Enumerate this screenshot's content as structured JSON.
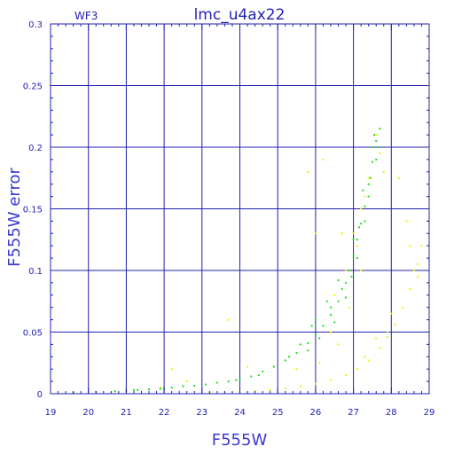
{
  "chart_data": {
    "type": "scatter",
    "title": "lmc_u4ax22",
    "tag": "WF3",
    "xlabel": "F555W",
    "ylabel": "F555W error",
    "xlim": [
      19,
      29
    ],
    "ylim": [
      0,
      0.3
    ],
    "x_ticks": [
      "19",
      "20",
      "21",
      "22",
      "23",
      "24",
      "25",
      "26",
      "27",
      "28",
      "29"
    ],
    "y_ticks": [
      "0",
      "0.05",
      "0.1",
      "0.15",
      "0.2",
      "0.25",
      "0.3"
    ],
    "grid": true,
    "colors": {
      "axis": "#2020b0",
      "grid": "#2020b0",
      "text": "#2323b0",
      "series_green": "#22dd22",
      "series_yellow": "#f0f000"
    },
    "series": [
      {
        "color": "green",
        "points": [
          [
            19.6,
            0.001
          ],
          [
            20.2,
            0.0015
          ],
          [
            20.7,
            0.002
          ],
          [
            21.0,
            0.0025
          ],
          [
            21.3,
            0.003
          ],
          [
            21.6,
            0.0035
          ],
          [
            21.9,
            0.004
          ],
          [
            22.2,
            0.005
          ],
          [
            22.5,
            0.006
          ],
          [
            22.8,
            0.0065
          ],
          [
            23.1,
            0.0075
          ],
          [
            23.4,
            0.009
          ],
          [
            23.7,
            0.01
          ],
          [
            24.0,
            0.012
          ],
          [
            24.3,
            0.014
          ],
          [
            24.6,
            0.018
          ],
          [
            24.9,
            0.022
          ],
          [
            25.2,
            0.027
          ],
          [
            25.5,
            0.033
          ],
          [
            25.8,
            0.041
          ],
          [
            26.0,
            0.048
          ],
          [
            26.2,
            0.055
          ],
          [
            26.4,
            0.064
          ],
          [
            26.6,
            0.075
          ],
          [
            26.8,
            0.09
          ],
          [
            26.9,
            0.1
          ],
          [
            27.0,
            0.112
          ],
          [
            27.1,
            0.125
          ],
          [
            27.2,
            0.138
          ],
          [
            27.3,
            0.152
          ],
          [
            27.4,
            0.17
          ],
          [
            27.5,
            0.188
          ],
          [
            27.6,
            0.205
          ],
          [
            27.7,
            0.215
          ],
          [
            25.9,
            0.055
          ],
          [
            26.1,
            0.045
          ],
          [
            26.3,
            0.075
          ],
          [
            26.5,
            0.058
          ],
          [
            26.7,
            0.085
          ],
          [
            25.6,
            0.04
          ],
          [
            25.3,
            0.03
          ],
          [
            26.8,
            0.078
          ],
          [
            27.0,
            0.125
          ],
          [
            27.1,
            0.11
          ],
          [
            27.3,
            0.14
          ],
          [
            27.4,
            0.16
          ],
          [
            27.5,
            0.2
          ],
          [
            27.6,
            0.19
          ],
          [
            24.5,
            0.015
          ],
          [
            23.9,
            0.011
          ],
          [
            22.0,
            0.004
          ],
          [
            21.2,
            0.003
          ],
          [
            26.6,
            0.092
          ],
          [
            26.95,
            0.095
          ],
          [
            27.25,
            0.165
          ],
          [
            26.0,
            0.06
          ],
          [
            25.8,
            0.035
          ],
          [
            26.4,
            0.07
          ],
          [
            27.15,
            0.135
          ],
          [
            27.45,
            0.175
          ],
          [
            27.55,
            0.21
          ],
          [
            27.65,
            0.2
          ]
        ]
      },
      {
        "color": "yellow",
        "points": [
          [
            23.2,
            0.001
          ],
          [
            23.6,
            0.001
          ],
          [
            24.0,
            0.0015
          ],
          [
            24.4,
            0.002
          ],
          [
            24.8,
            0.003
          ],
          [
            25.2,
            0.004
          ],
          [
            25.6,
            0.006
          ],
          [
            26.0,
            0.008
          ],
          [
            26.4,
            0.011
          ],
          [
            26.8,
            0.015
          ],
          [
            27.1,
            0.02
          ],
          [
            27.4,
            0.027
          ],
          [
            27.7,
            0.037
          ],
          [
            27.9,
            0.046
          ],
          [
            28.1,
            0.056
          ],
          [
            28.3,
            0.07
          ],
          [
            28.5,
            0.085
          ],
          [
            28.7,
            0.105
          ],
          [
            28.8,
            0.12
          ],
          [
            28.95,
            0.14
          ],
          [
            27.0,
            0.13
          ],
          [
            27.2,
            0.15
          ],
          [
            27.4,
            0.175
          ],
          [
            27.5,
            0.2
          ],
          [
            27.6,
            0.21
          ],
          [
            27.7,
            0.195
          ],
          [
            27.3,
            0.16
          ],
          [
            26.8,
            0.1
          ],
          [
            27.1,
            0.12
          ],
          [
            26.5,
            0.08
          ],
          [
            27.8,
            0.18
          ],
          [
            28.2,
            0.175
          ],
          [
            28.4,
            0.14
          ],
          [
            26.2,
            0.19
          ],
          [
            25.8,
            0.18
          ],
          [
            26.0,
            0.13
          ],
          [
            26.6,
            0.04
          ],
          [
            27.9,
            0.05
          ],
          [
            28.6,
            0.1
          ],
          [
            23.7,
            0.06
          ],
          [
            22.2,
            0.02
          ],
          [
            21.9,
            0.005
          ],
          [
            22.6,
            0.01
          ],
          [
            24.2,
            0.022
          ],
          [
            25.5,
            0.02
          ],
          [
            26.1,
            0.025
          ],
          [
            26.4,
            0.05
          ],
          [
            26.9,
            0.07
          ],
          [
            27.3,
            0.03
          ],
          [
            27.6,
            0.045
          ],
          [
            28.0,
            0.065
          ],
          [
            28.5,
            0.12
          ],
          [
            28.7,
            0.095
          ],
          [
            27.2,
            0.1
          ],
          [
            26.7,
            0.13
          ]
        ]
      }
    ]
  }
}
